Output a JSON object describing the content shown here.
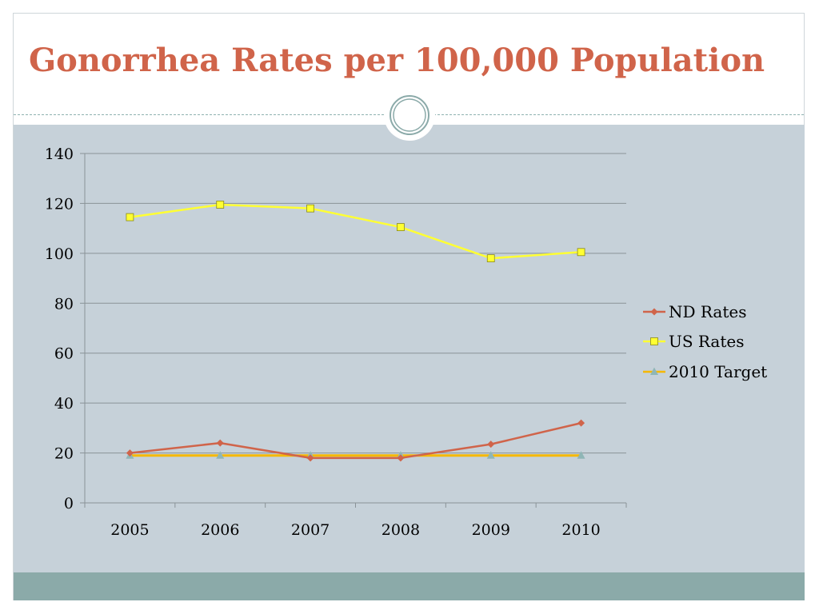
{
  "slide": {
    "title": "Gonorrhea Rates per 100,000 Population"
  },
  "colors": {
    "title": "#d0644a",
    "background_panel": "#c6d1d9",
    "footer_band": "#8baaa9",
    "nd_rates": "#d0644a",
    "us_rates": "#ffff33",
    "target": "#f5b800",
    "target_marker": "#8fb6b6",
    "gridline": "#8a9398"
  },
  "chart_data": {
    "type": "line",
    "title": "",
    "xlabel": "",
    "ylabel": "",
    "categories": [
      "2005",
      "2006",
      "2007",
      "2008",
      "2009",
      "2010"
    ],
    "ylim": [
      0,
      140
    ],
    "yticks": [
      0,
      20,
      40,
      60,
      80,
      100,
      120,
      140
    ],
    "grid": true,
    "legend_position": "right",
    "series": [
      {
        "name": "ND Rates",
        "marker": "diamond",
        "color": "#d0644a",
        "values": [
          20,
          24,
          18,
          18,
          23.5,
          32
        ]
      },
      {
        "name": "US Rates",
        "marker": "square",
        "color": "#ffff33",
        "values": [
          114.5,
          119.5,
          118,
          110.5,
          98,
          100.5
        ]
      },
      {
        "name": "2010 Target",
        "marker": "triangle",
        "color": "#f5b800",
        "values": [
          19,
          19,
          19,
          19,
          19,
          19
        ]
      }
    ]
  }
}
